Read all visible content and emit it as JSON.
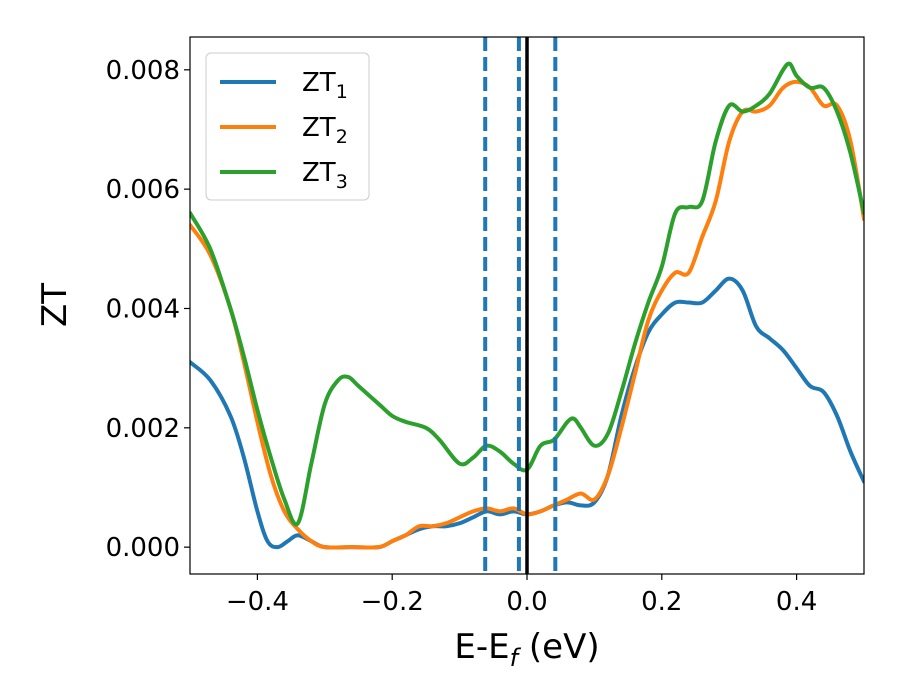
{
  "chart_data": {
    "type": "line",
    "xlabel": "E-E",
    "xlabel_sub": "f",
    "xlabel_unit": " (eV)",
    "ylabel": "ZT",
    "xlim": [
      -0.5,
      0.5
    ],
    "ylim": [
      -0.00045,
      0.00855
    ],
    "xticks": [
      -0.4,
      -0.2,
      0.0,
      0.2,
      0.4
    ],
    "xtick_labels": [
      "−0.4",
      "−0.2",
      "0.0",
      "0.2",
      "0.4"
    ],
    "yticks": [
      0.0,
      0.002,
      0.004,
      0.006,
      0.008
    ],
    "ytick_labels": [
      "0.000",
      "0.002",
      "0.004",
      "0.006",
      "0.008"
    ],
    "grid": false,
    "legend_position": "top-left",
    "vlines": [
      {
        "x": -0.062,
        "style": "dashed",
        "color": "#1f77b4"
      },
      {
        "x": -0.012,
        "style": "dashed",
        "color": "#1f77b4"
      },
      {
        "x": 0.0,
        "style": "solid",
        "color": "#000000"
      },
      {
        "x": 0.042,
        "style": "dashed",
        "color": "#1f77b4"
      }
    ],
    "series": [
      {
        "name": "ZT",
        "name_sub": "1",
        "color": "#1f77b4",
        "x": [
          -0.5,
          -0.47,
          -0.44,
          -0.42,
          -0.4,
          -0.385,
          -0.37,
          -0.355,
          -0.34,
          -0.32,
          -0.3,
          -0.26,
          -0.22,
          -0.2,
          -0.18,
          -0.16,
          -0.14,
          -0.12,
          -0.1,
          -0.08,
          -0.06,
          -0.04,
          -0.02,
          0.0,
          0.02,
          0.04,
          0.06,
          0.08,
          0.1,
          0.12,
          0.14,
          0.16,
          0.18,
          0.2,
          0.22,
          0.24,
          0.26,
          0.28,
          0.3,
          0.32,
          0.34,
          0.36,
          0.38,
          0.4,
          0.42,
          0.44,
          0.46,
          0.48,
          0.5
        ],
        "y": [
          0.0031,
          0.0028,
          0.0022,
          0.0015,
          0.0006,
          0.0001,
          0.0,
          0.0001,
          0.0002,
          0.0001,
          0.0,
          0.0,
          0.0,
          0.0001,
          0.0002,
          0.0003,
          0.00035,
          0.00035,
          0.0004,
          0.0005,
          0.0006,
          0.00055,
          0.0006,
          0.00055,
          0.0006,
          0.0007,
          0.00075,
          0.0007,
          0.00075,
          0.0012,
          0.0022,
          0.003,
          0.0036,
          0.0039,
          0.0041,
          0.0041,
          0.0041,
          0.0043,
          0.0045,
          0.0043,
          0.0037,
          0.0035,
          0.0033,
          0.003,
          0.0027,
          0.0026,
          0.0022,
          0.0016,
          0.0011
        ]
      },
      {
        "name": "ZT",
        "name_sub": "2",
        "color": "#ff7f0e",
        "x": [
          -0.5,
          -0.47,
          -0.44,
          -0.42,
          -0.4,
          -0.38,
          -0.36,
          -0.34,
          -0.32,
          -0.3,
          -0.26,
          -0.22,
          -0.2,
          -0.18,
          -0.16,
          -0.14,
          -0.12,
          -0.1,
          -0.08,
          -0.06,
          -0.04,
          -0.02,
          0.0,
          0.02,
          0.04,
          0.06,
          0.08,
          0.1,
          0.12,
          0.14,
          0.16,
          0.18,
          0.2,
          0.22,
          0.24,
          0.26,
          0.28,
          0.3,
          0.32,
          0.34,
          0.36,
          0.38,
          0.4,
          0.42,
          0.44,
          0.46,
          0.48,
          0.5
        ],
        "y": [
          0.0054,
          0.0049,
          0.004,
          0.0031,
          0.0021,
          0.0012,
          0.0006,
          0.0003,
          0.0001,
          0.0,
          0.0,
          0.0,
          0.0001,
          0.0002,
          0.00035,
          0.00035,
          0.0004,
          0.0005,
          0.0006,
          0.00065,
          0.0006,
          0.00065,
          0.00055,
          0.0006,
          0.0007,
          0.0008,
          0.0009,
          0.0008,
          0.0012,
          0.002,
          0.0029,
          0.0038,
          0.0043,
          0.0046,
          0.0046,
          0.0052,
          0.0058,
          0.0068,
          0.0073,
          0.0073,
          0.0074,
          0.0077,
          0.0078,
          0.0077,
          0.0074,
          0.0074,
          0.0068,
          0.0055
        ]
      },
      {
        "name": "ZT",
        "name_sub": "3",
        "color": "#2ca02c",
        "x": [
          -0.5,
          -0.47,
          -0.44,
          -0.42,
          -0.4,
          -0.38,
          -0.36,
          -0.34,
          -0.32,
          -0.3,
          -0.28,
          -0.265,
          -0.25,
          -0.22,
          -0.2,
          -0.18,
          -0.15,
          -0.13,
          -0.1,
          -0.08,
          -0.06,
          -0.04,
          -0.02,
          0.0,
          0.02,
          0.04,
          0.06,
          0.07,
          0.08,
          0.1,
          0.12,
          0.14,
          0.16,
          0.18,
          0.2,
          0.22,
          0.24,
          0.26,
          0.28,
          0.3,
          0.32,
          0.34,
          0.36,
          0.38,
          0.39,
          0.4,
          0.42,
          0.44,
          0.46,
          0.48,
          0.5
        ],
        "y": [
          0.0056,
          0.005,
          0.004,
          0.0032,
          0.0023,
          0.0015,
          0.0008,
          0.0004,
          0.0014,
          0.0024,
          0.0028,
          0.00285,
          0.0027,
          0.0024,
          0.0022,
          0.0021,
          0.002,
          0.0018,
          0.0014,
          0.0015,
          0.0017,
          0.0016,
          0.0014,
          0.0013,
          0.0017,
          0.0018,
          0.0021,
          0.00215,
          0.002,
          0.0017,
          0.0019,
          0.0026,
          0.0034,
          0.0041,
          0.0047,
          0.0056,
          0.0057,
          0.0058,
          0.0068,
          0.0074,
          0.0073,
          0.0074,
          0.0076,
          0.008,
          0.0081,
          0.0079,
          0.0077,
          0.0077,
          0.0073,
          0.0066,
          0.0056
        ]
      }
    ]
  }
}
